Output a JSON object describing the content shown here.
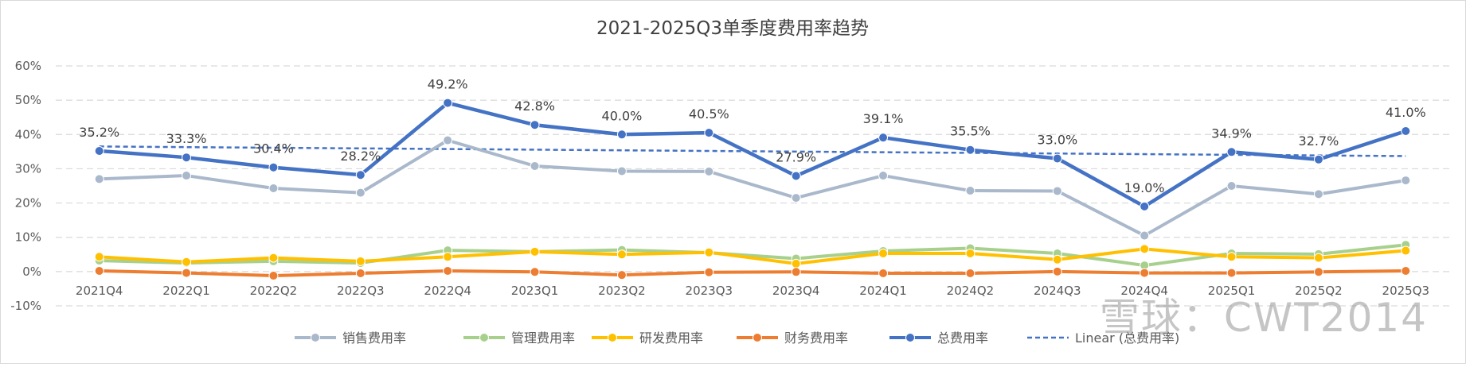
{
  "chart_data": {
    "type": "line",
    "title": "2021-2025Q3单季度费用率趋势",
    "categories": [
      "2021Q4",
      "2022Q1",
      "2022Q2",
      "2022Q3",
      "2022Q4",
      "2023Q1",
      "2023Q2",
      "2023Q3",
      "2023Q4",
      "2024Q1",
      "2024Q2",
      "2024Q3",
      "2024Q4",
      "2025Q1",
      "2025Q2",
      "2025Q3"
    ],
    "ylim": [
      -10,
      60
    ],
    "yticks": [
      -10,
      0,
      10,
      20,
      30,
      40,
      50,
      60
    ],
    "ytick_labels": [
      "-10%",
      "0%",
      "10%",
      "20%",
      "30%",
      "40%",
      "50%",
      "60%"
    ],
    "grid": true,
    "legend_position": "bottom",
    "series": [
      {
        "name": "销售费用率",
        "color": "#a9b8cb",
        "values": [
          27.0,
          28.0,
          24.3,
          23.0,
          38.3,
          30.8,
          29.3,
          29.2,
          21.5,
          28.0,
          23.6,
          23.5,
          10.5,
          25.0,
          22.6,
          26.6
        ]
      },
      {
        "name": "管理费用率",
        "color": "#a8d08d",
        "values": [
          3.2,
          2.5,
          3.0,
          2.5,
          6.2,
          5.8,
          6.3,
          5.5,
          3.8,
          6.0,
          6.8,
          5.3,
          1.8,
          5.3,
          5.1,
          7.8
        ]
      },
      {
        "name": "研发费用率",
        "color": "#ffc000",
        "values": [
          4.3,
          2.8,
          4.0,
          3.0,
          4.3,
          5.8,
          5.0,
          5.6,
          2.3,
          5.3,
          5.3,
          3.5,
          6.6,
          4.3,
          4.0,
          6.1
        ]
      },
      {
        "name": "财务费用率",
        "color": "#ed7d31",
        "values": [
          0.2,
          -0.4,
          -1.2,
          -0.5,
          0.2,
          -0.1,
          -1.0,
          -0.2,
          -0.1,
          -0.5,
          -0.5,
          0.0,
          -0.4,
          -0.4,
          -0.1,
          0.2
        ]
      },
      {
        "name": "总费用率",
        "color": "#4472c4",
        "values": [
          35.2,
          33.3,
          30.4,
          28.2,
          49.2,
          42.8,
          40.0,
          40.5,
          27.9,
          39.1,
          35.5,
          33.0,
          19.0,
          34.9,
          32.7,
          41.0
        ],
        "data_labels": [
          "35.2%",
          "33.3%",
          "30.4%",
          "28.2%",
          "49.2%",
          "42.8%",
          "40.0%",
          "40.5%",
          "27.9%",
          "39.1%",
          "35.5%",
          "33.0%",
          "19.0%",
          "34.9%",
          "32.7%",
          "41.0%"
        ]
      }
    ],
    "trendline": {
      "name": "Linear (总费用率)",
      "color": "#4472c4",
      "start": 36.5,
      "end": 33.7
    },
    "watermark": "雪球：CWT2014"
  }
}
